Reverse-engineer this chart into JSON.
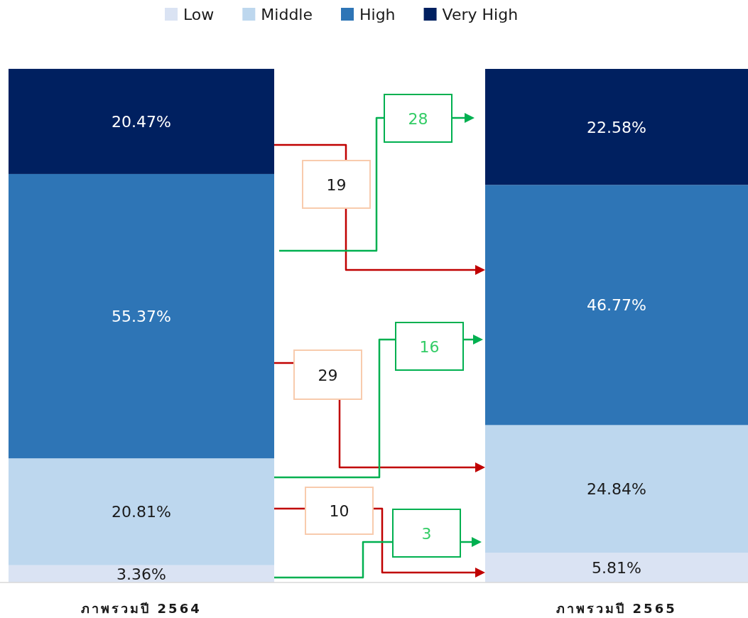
{
  "chart_data": {
    "type": "bar",
    "stacked": true,
    "legend": "top",
    "categories": [
      "ภาพรวมปี 2564",
      "ภาพรวมปี 2565"
    ],
    "ylim": [
      0,
      100
    ],
    "series": [
      {
        "name": "Low",
        "color": "#dae3f3",
        "values": [
          3.36,
          5.81
        ],
        "value_labels": [
          "3.36%",
          "5.81%"
        ]
      },
      {
        "name": "Middle",
        "color": "#bdd7ee",
        "values": [
          20.81,
          24.84
        ],
        "value_labels": [
          "20.81%",
          "24.84%"
        ]
      },
      {
        "name": "High",
        "color": "#2e75b6",
        "values": [
          55.37,
          46.77
        ],
        "value_labels": [
          "55.37%",
          "46.77%"
        ]
      },
      {
        "name": "Very High",
        "color": "#002060",
        "values": [
          20.47,
          22.58
        ],
        "value_labels": [
          "20.47%",
          "22.58%"
        ]
      }
    ],
    "annotations": [
      "19",
      "28",
      "29",
      "16",
      "10",
      "3"
    ]
  }
}
